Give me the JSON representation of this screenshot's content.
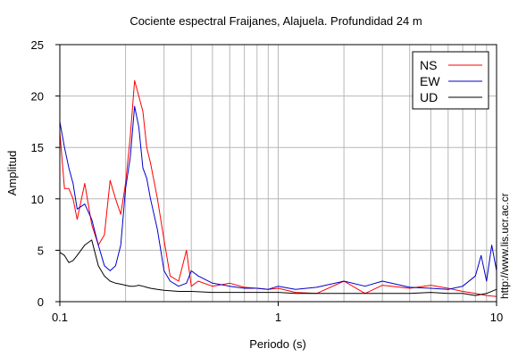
{
  "chart_data": {
    "type": "line",
    "title": "Cociente espectral Fraijanes, Alajuela. Profundidad 24 m",
    "xlabel": "Periodo (s)",
    "ylabel": "Amplitud",
    "xscale": "log",
    "xlim": [
      0.1,
      10
    ],
    "ylim": [
      0,
      25
    ],
    "x_ticks": [
      0.1,
      1,
      10
    ],
    "x_tick_labels": [
      "0.1",
      "1",
      "10"
    ],
    "y_ticks": [
      0,
      5,
      10,
      15,
      20,
      25
    ],
    "y_tick_labels": [
      "0",
      "5",
      "10",
      "15",
      "20",
      "25"
    ],
    "grid": true,
    "legend_position": "top-right",
    "credit": "http://www.lis.ucr.ac.cr",
    "series": [
      {
        "name": "NS",
        "color": "#ff0000",
        "x": [
          0.1,
          0.105,
          0.11,
          0.115,
          0.12,
          0.13,
          0.14,
          0.15,
          0.16,
          0.17,
          0.18,
          0.19,
          0.2,
          0.21,
          0.22,
          0.23,
          0.24,
          0.25,
          0.26,
          0.28,
          0.3,
          0.32,
          0.35,
          0.38,
          0.4,
          0.43,
          0.5,
          0.6,
          0.7,
          0.8,
          0.9,
          1,
          1.2,
          1.5,
          2,
          2.5,
          3,
          4,
          5,
          6,
          7,
          8,
          9,
          10
        ],
        "values": [
          16.5,
          11.0,
          11.0,
          10.0,
          8.0,
          11.5,
          7.5,
          5.5,
          6.5,
          11.8,
          10.0,
          8.5,
          11.5,
          16.0,
          21.5,
          20.0,
          18.5,
          15.0,
          13.5,
          10.0,
          6.0,
          2.5,
          2.0,
          5.0,
          1.5,
          2.0,
          1.5,
          1.8,
          1.4,
          1.3,
          1.2,
          1.3,
          0.9,
          0.8,
          2.0,
          0.8,
          1.6,
          1.3,
          1.6,
          1.3,
          1.0,
          0.8,
          0.6,
          0.5
        ]
      },
      {
        "name": "EW",
        "color": "#0000cc",
        "x": [
          0.1,
          0.105,
          0.11,
          0.115,
          0.12,
          0.13,
          0.14,
          0.15,
          0.16,
          0.17,
          0.18,
          0.19,
          0.2,
          0.21,
          0.22,
          0.23,
          0.24,
          0.25,
          0.26,
          0.28,
          0.3,
          0.32,
          0.35,
          0.38,
          0.4,
          0.43,
          0.5,
          0.6,
          0.7,
          0.8,
          0.9,
          1,
          1.2,
          1.5,
          2,
          2.5,
          3,
          4,
          5,
          6,
          7,
          8,
          8.5,
          9,
          9.5,
          10
        ],
        "values": [
          17.5,
          15.0,
          13.0,
          11.5,
          9.0,
          9.5,
          8.0,
          5.5,
          3.5,
          3.0,
          3.5,
          5.5,
          11.0,
          14.0,
          19.0,
          17.0,
          13.0,
          12.0,
          10.0,
          7.0,
          3.0,
          2.0,
          1.5,
          1.8,
          3.0,
          2.5,
          1.8,
          1.5,
          1.3,
          1.3,
          1.2,
          1.5,
          1.2,
          1.4,
          2.0,
          1.5,
          2.0,
          1.4,
          1.3,
          1.2,
          1.5,
          2.5,
          4.5,
          2.0,
          5.5,
          3.0
        ]
      },
      {
        "name": "UD",
        "color": "#000000",
        "x": [
          0.1,
          0.105,
          0.11,
          0.115,
          0.12,
          0.13,
          0.14,
          0.15,
          0.16,
          0.17,
          0.18,
          0.19,
          0.2,
          0.21,
          0.22,
          0.23,
          0.24,
          0.25,
          0.26,
          0.28,
          0.3,
          0.35,
          0.4,
          0.5,
          0.6,
          0.7,
          0.8,
          0.9,
          1,
          1.2,
          1.5,
          2,
          2.5,
          3,
          4,
          5,
          6,
          7,
          8,
          9,
          10
        ],
        "values": [
          4.8,
          4.5,
          3.8,
          4.0,
          4.5,
          5.5,
          6.0,
          3.5,
          2.5,
          2.0,
          1.8,
          1.7,
          1.6,
          1.5,
          1.5,
          1.6,
          1.5,
          1.4,
          1.3,
          1.2,
          1.1,
          1.0,
          1.0,
          0.9,
          0.9,
          0.9,
          0.9,
          0.9,
          0.9,
          0.8,
          0.8,
          0.8,
          0.8,
          0.8,
          0.8,
          0.9,
          0.8,
          0.8,
          0.6,
          0.8,
          1.2
        ]
      }
    ]
  }
}
